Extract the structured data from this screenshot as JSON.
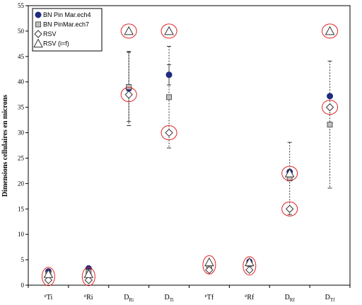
{
  "chart_data": {
    "type": "scatter",
    "ylabel": "Dimensions cellulaires en microns",
    "ylim": [
      0,
      55
    ],
    "yticks": [
      0,
      5,
      10,
      15,
      20,
      25,
      30,
      35,
      40,
      45,
      50,
      55
    ],
    "categories": [
      {
        "main": "e",
        "sub": "Ti",
        "style": "pre"
      },
      {
        "main": "e",
        "sub": "Ri",
        "style": "pre"
      },
      {
        "main": "D",
        "sub": "Ri",
        "style": "post"
      },
      {
        "main": "D",
        "sub": "Ti",
        "style": "post"
      },
      {
        "main": "e",
        "sub": "Tf",
        "style": "pre"
      },
      {
        "main": "e",
        "sub": "Rf",
        "style": "pre"
      },
      {
        "main": "D",
        "sub": "Rf",
        "style": "post"
      },
      {
        "main": "D",
        "sub": "Tf",
        "style": "post"
      }
    ],
    "legend_position": "top-left",
    "series": [
      {
        "name": "BN Pin Mar.ech4",
        "marker": "circle",
        "color": "#1f2a80",
        "values": [
          2.7,
          3.3,
          38.7,
          41.4,
          4.0,
          4.6,
          22.3,
          37.2
        ],
        "err": [
          0.4,
          0.4,
          7.3,
          2.0,
          0.5,
          0.5,
          0,
          0
        ]
      },
      {
        "name": "BN PinMar.ech7",
        "marker": "square",
        "color": "#808080",
        "values": [
          2.2,
          2.6,
          39.0,
          37.0,
          3.6,
          4.2,
          21.0,
          31.6
        ],
        "err": [
          0.3,
          0.3,
          6.8,
          10.0,
          0.5,
          0.5,
          7.1,
          12.5
        ]
      },
      {
        "name": "RSV",
        "marker": "diamond",
        "color": "#333333",
        "values": [
          1.0,
          1.0,
          37.5,
          30.0,
          3.0,
          3.0,
          15.0,
          35.0
        ]
      },
      {
        "name": "RSV (i=f)",
        "marker": "triangle",
        "color": "#333333",
        "values": [
          2.2,
          2.2,
          50.0,
          50.0,
          4.5,
          4.5,
          22.0,
          50.0
        ]
      }
    ],
    "highlight_circles": {
      "color": "#e02020",
      "points": [
        {
          "cat": 0,
          "y": 1.7,
          "shape": "tall"
        },
        {
          "cat": 1,
          "y": 1.7,
          "shape": "tall"
        },
        {
          "cat": 2,
          "y": 50.0,
          "shape": "round"
        },
        {
          "cat": 2,
          "y": 37.5,
          "shape": "round"
        },
        {
          "cat": 3,
          "y": 50.0,
          "shape": "round"
        },
        {
          "cat": 3,
          "y": 30.0,
          "shape": "round"
        },
        {
          "cat": 4,
          "y": 4.0,
          "shape": "tall"
        },
        {
          "cat": 5,
          "y": 3.8,
          "shape": "tall"
        },
        {
          "cat": 6,
          "y": 22.0,
          "shape": "round"
        },
        {
          "cat": 6,
          "y": 15.0,
          "shape": "round"
        },
        {
          "cat": 7,
          "y": 50.0,
          "shape": "round"
        },
        {
          "cat": 7,
          "y": 35.0,
          "shape": "round"
        }
      ]
    }
  }
}
